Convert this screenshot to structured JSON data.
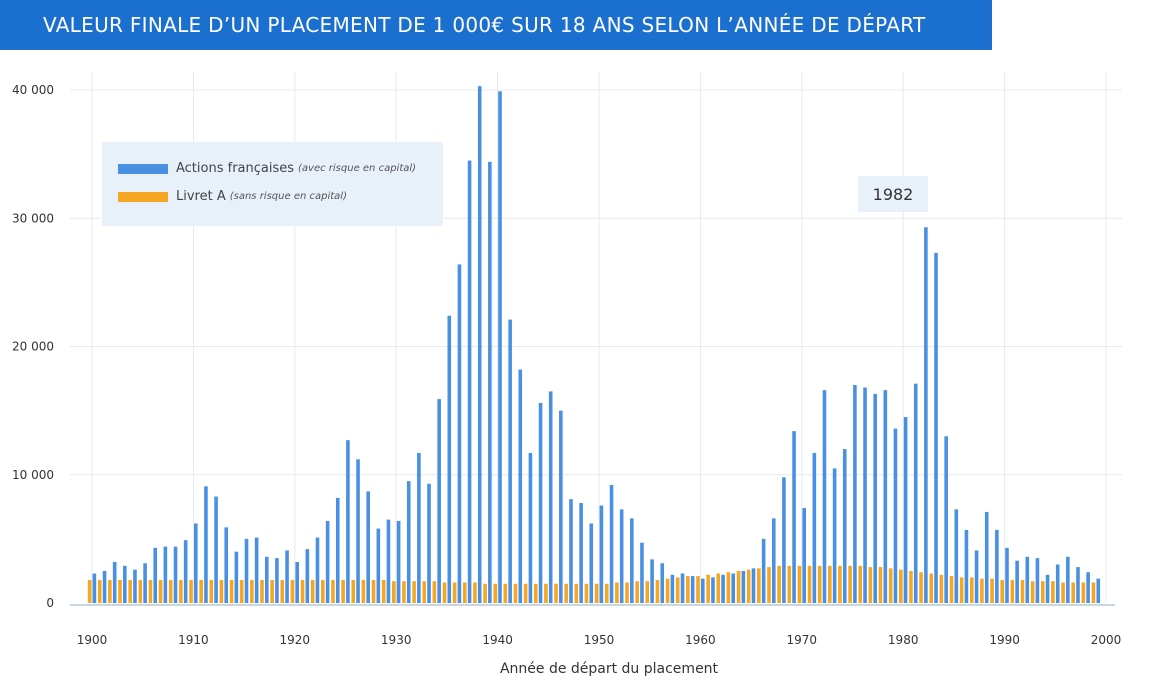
{
  "title": "VALEUR FINALE D’UN PLACEMENT DE 1 000€ SUR 18 ANS SELON L’ANNÉE DE DÉPART",
  "colors": {
    "title_bg": "#1a6fcf",
    "actions": "#4a90e2",
    "livret": "#f5a623",
    "legend_bg": "#e8f0f9"
  },
  "legend": [
    {
      "label": "Actions françaises",
      "note": "(avec risque en capital)",
      "color": "#4a90e2"
    },
    {
      "label": "Livret A",
      "note": "(sans risque en capital)",
      "color": "#f5a623"
    }
  ],
  "callout": {
    "label": "1982"
  },
  "chart_data": {
    "type": "bar",
    "title": "VALEUR FINALE D’UN PLACEMENT DE 1 000€ SUR 18 ANS SELON L’ANNÉE DE DÉPART",
    "xlabel": "Année de départ du placement",
    "ylabel": "",
    "xlim": [
      1900,
      2000
    ],
    "ylim": [
      0,
      40000
    ],
    "x_ticks": [
      1900,
      1910,
      1920,
      1930,
      1940,
      1950,
      1960,
      1970,
      1980,
      1990,
      2000
    ],
    "y_ticks": [
      0,
      10000,
      20000,
      30000,
      40000
    ],
    "y_tick_labels": [
      "0",
      "10 000",
      "20 000",
      "30 000",
      "40 000"
    ],
    "grid": true,
    "legend_position": "top-left",
    "annotation": {
      "x": 1982,
      "text": "1982"
    },
    "x": [
      1900,
      1901,
      1902,
      1903,
      1904,
      1905,
      1906,
      1907,
      1908,
      1909,
      1910,
      1911,
      1912,
      1913,
      1914,
      1915,
      1916,
      1917,
      1918,
      1919,
      1920,
      1921,
      1922,
      1923,
      1924,
      1925,
      1926,
      1927,
      1928,
      1929,
      1930,
      1931,
      1932,
      1933,
      1934,
      1935,
      1936,
      1937,
      1938,
      1939,
      1940,
      1941,
      1942,
      1943,
      1944,
      1945,
      1946,
      1947,
      1948,
      1949,
      1950,
      1951,
      1952,
      1953,
      1954,
      1955,
      1956,
      1957,
      1958,
      1959,
      1960,
      1961,
      1962,
      1963,
      1964,
      1965,
      1966,
      1967,
      1968,
      1969,
      1970,
      1971,
      1972,
      1973,
      1974,
      1975,
      1976,
      1977,
      1978,
      1979,
      1980,
      1981,
      1982,
      1983,
      1984,
      1985,
      1986,
      1987,
      1988,
      1989,
      1990,
      1991,
      1992,
      1993,
      1994,
      1995,
      1996,
      1997,
      1998,
      1999
    ],
    "series": [
      {
        "name": "Actions françaises (avec risque en capital)",
        "color": "#4a90e2",
        "values": [
          2300,
          2500,
          3200,
          2900,
          2600,
          3100,
          4300,
          4400,
          4400,
          4900,
          6200,
          9100,
          8300,
          5900,
          4000,
          5000,
          5100,
          3600,
          3500,
          4100,
          3200,
          4200,
          5100,
          6400,
          8200,
          12700,
          11200,
          8700,
          5800,
          6500,
          6400,
          9500,
          11700,
          9300,
          15900,
          22400,
          26400,
          34500,
          40300,
          34400,
          39900,
          22100,
          18200,
          11700,
          15600,
          16500,
          15000,
          8100,
          7800,
          6200,
          7600,
          9200,
          7300,
          6600,
          4700,
          3400,
          3100,
          2200,
          2300,
          2100,
          1900,
          2000,
          2200,
          2300,
          2500,
          2700,
          5000,
          6600,
          9800,
          13400,
          7400,
          11700,
          16600,
          10500,
          12000,
          17000,
          16800,
          16300,
          16600,
          13600,
          14500,
          17100,
          29300,
          27300,
          13000,
          7300,
          5700,
          4100,
          7100,
          5700,
          4300,
          3300,
          3600,
          3500,
          2200,
          3000,
          3600,
          2800,
          2400,
          1900
        ]
      },
      {
        "name": "Livret A (sans risque en capital)",
        "color": "#f5a623",
        "values": [
          1800,
          1800,
          1800,
          1800,
          1800,
          1800,
          1800,
          1800,
          1800,
          1800,
          1800,
          1800,
          1800,
          1800,
          1800,
          1800,
          1800,
          1800,
          1800,
          1800,
          1800,
          1800,
          1800,
          1800,
          1800,
          1800,
          1800,
          1800,
          1800,
          1800,
          1700,
          1700,
          1700,
          1700,
          1700,
          1600,
          1600,
          1600,
          1600,
          1500,
          1500,
          1500,
          1500,
          1500,
          1500,
          1500,
          1500,
          1500,
          1500,
          1500,
          1500,
          1500,
          1600,
          1600,
          1700,
          1700,
          1800,
          1900,
          2000,
          2100,
          2100,
          2200,
          2300,
          2400,
          2500,
          2600,
          2700,
          2800,
          2900,
          2900,
          2900,
          2900,
          2900,
          2900,
          2900,
          2900,
          2900,
          2800,
          2800,
          2700,
          2600,
          2500,
          2400,
          2300,
          2200,
          2100,
          2000,
          2000,
          1900,
          1900,
          1800,
          1800,
          1800,
          1700,
          1700,
          1700,
          1600,
          1600,
          1600,
          1600
        ]
      }
    ]
  }
}
